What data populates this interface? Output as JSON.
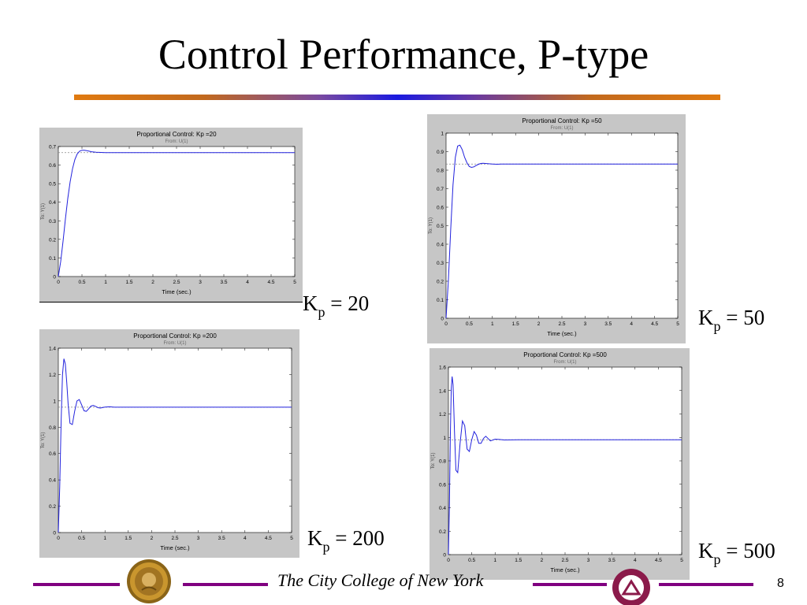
{
  "slide": {
    "title": "Control Performance, P-type",
    "footer_text": "The City College of New York",
    "page_number": "8"
  },
  "labels": {
    "kp_symbol": "K",
    "kp_sub": "p",
    "kp20": " = 20",
    "kp50": " = 50",
    "kp200": " = 200",
    "kp500": " = 500"
  },
  "chart_data": [
    {
      "type": "line",
      "title": "Proportional Control: Kp =20",
      "subtitle": "From: U(1)",
      "xlabel": "Time (sec.)",
      "ylabel": "To: Y(1)",
      "xlim": [
        0,
        5
      ],
      "ylim": [
        0,
        0.7
      ],
      "xticks": [
        "0",
        "0.5",
        "1",
        "1.5",
        "2",
        "2.5",
        "3",
        "3.5",
        "4",
        "4.5",
        "5"
      ],
      "yticks": [
        "0",
        "0.1",
        "0.2",
        "0.3",
        "0.4",
        "0.5",
        "0.6",
        "0.7"
      ],
      "steady_state": 0.667,
      "x": [
        0,
        0.05,
        0.1,
        0.15,
        0.2,
        0.25,
        0.3,
        0.35,
        0.4,
        0.45,
        0.5,
        0.55,
        0.6,
        0.65,
        0.7,
        0.8,
        0.9,
        1.0,
        1.2,
        1.5,
        2,
        3,
        4,
        5
      ],
      "y": [
        0,
        0.08,
        0.19,
        0.31,
        0.42,
        0.51,
        0.58,
        0.63,
        0.66,
        0.675,
        0.68,
        0.68,
        0.678,
        0.675,
        0.672,
        0.669,
        0.668,
        0.667,
        0.667,
        0.667,
        0.667,
        0.667,
        0.667,
        0.667
      ]
    },
    {
      "type": "line",
      "title": "Proportional Control: Kp =50",
      "subtitle": "From: U(1)",
      "xlabel": "Time (sec.)",
      "ylabel": "To: Y(1)",
      "xlim": [
        0,
        5
      ],
      "ylim": [
        0,
        1
      ],
      "xticks": [
        "0",
        "0.5",
        "1",
        "1.5",
        "2",
        "2.5",
        "3",
        "3.5",
        "4",
        "4.5",
        "5"
      ],
      "yticks": [
        "0",
        "0.1",
        "0.2",
        "0.3",
        "0.4",
        "0.5",
        "0.6",
        "0.7",
        "0.8",
        "0.9",
        "1"
      ],
      "steady_state": 0.833,
      "x": [
        0,
        0.05,
        0.1,
        0.15,
        0.2,
        0.25,
        0.3,
        0.35,
        0.4,
        0.45,
        0.5,
        0.55,
        0.6,
        0.65,
        0.7,
        0.75,
        0.8,
        0.9,
        1.0,
        1.1,
        1.2,
        1.5,
        2,
        3,
        4,
        5
      ],
      "y": [
        0,
        0.2,
        0.48,
        0.72,
        0.87,
        0.93,
        0.935,
        0.91,
        0.87,
        0.84,
        0.82,
        0.815,
        0.818,
        0.825,
        0.832,
        0.836,
        0.837,
        0.835,
        0.833,
        0.832,
        0.833,
        0.833,
        0.833,
        0.833,
        0.833,
        0.833
      ]
    },
    {
      "type": "line",
      "title": "Proportional Control: Kp =200",
      "subtitle": "From: U(1)",
      "xlabel": "Time (sec.)",
      "ylabel": "To: Y(1)",
      "xlim": [
        0,
        5
      ],
      "ylim": [
        0,
        1.4
      ],
      "xticks": [
        "0",
        "0.5",
        "1",
        "1.5",
        "2",
        "2.5",
        "3",
        "3.5",
        "4",
        "4.5",
        "5"
      ],
      "yticks": [
        "0",
        "0.2",
        "0.4",
        "0.6",
        "0.8",
        "1",
        "1.2",
        "1.4"
      ],
      "steady_state": 0.952,
      "x": [
        0,
        0.03,
        0.06,
        0.09,
        0.12,
        0.15,
        0.18,
        0.21,
        0.25,
        0.3,
        0.35,
        0.4,
        0.45,
        0.5,
        0.55,
        0.6,
        0.65,
        0.7,
        0.75,
        0.8,
        0.85,
        0.9,
        1.0,
        1.1,
        1.2,
        1.5,
        2,
        3,
        4,
        5
      ],
      "y": [
        0,
        0.35,
        0.85,
        1.2,
        1.32,
        1.28,
        1.14,
        0.98,
        0.83,
        0.82,
        0.92,
        1.0,
        1.01,
        0.97,
        0.925,
        0.92,
        0.94,
        0.96,
        0.965,
        0.958,
        0.948,
        0.945,
        0.953,
        0.955,
        0.952,
        0.952,
        0.952,
        0.952,
        0.952,
        0.952
      ]
    },
    {
      "type": "line",
      "title": "Proportional Control: Kp =500",
      "subtitle": "From: U(1)",
      "xlabel": "Time (sec.)",
      "ylabel": "To: Y(1)",
      "xlim": [
        0,
        5
      ],
      "ylim": [
        0,
        1.6
      ],
      "xticks": [
        "0",
        "0.5",
        "1",
        "1.5",
        "2",
        "2.5",
        "3",
        "3.5",
        "4",
        "4.5",
        "5"
      ],
      "yticks": [
        "0",
        "0.2",
        "0.4",
        "0.6",
        "0.8",
        "1",
        "1.2",
        "1.4",
        "1.6"
      ],
      "steady_state": 0.98,
      "x": [
        0,
        0.02,
        0.04,
        0.06,
        0.08,
        0.1,
        0.13,
        0.16,
        0.2,
        0.25,
        0.3,
        0.35,
        0.4,
        0.45,
        0.5,
        0.55,
        0.6,
        0.65,
        0.7,
        0.75,
        0.8,
        0.85,
        0.9,
        1.0,
        1.1,
        1.2,
        1.5,
        2,
        3,
        4,
        5
      ],
      "y": [
        0,
        0.4,
        1.0,
        1.42,
        1.52,
        1.45,
        1.05,
        0.72,
        0.7,
        0.95,
        1.14,
        1.1,
        0.9,
        0.88,
        0.98,
        1.05,
        1.02,
        0.95,
        0.95,
        0.99,
        1.01,
        0.99,
        0.97,
        0.985,
        0.982,
        0.978,
        0.98,
        0.98,
        0.98,
        0.98,
        0.98
      ]
    }
  ]
}
